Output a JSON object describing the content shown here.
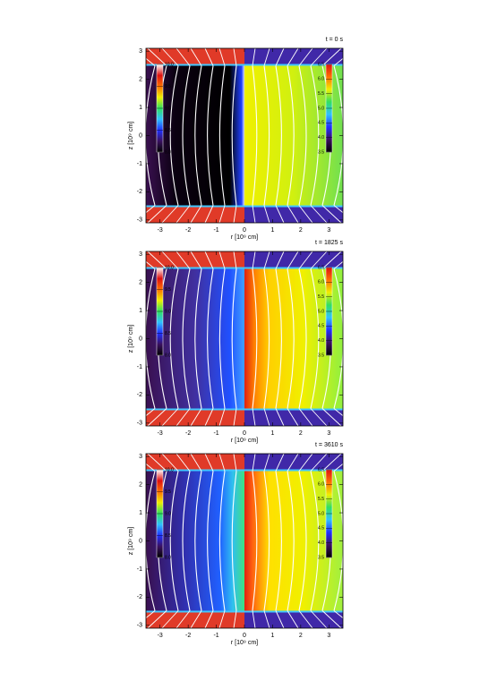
{
  "chart_data": [
    {
      "type": "field",
      "title": "t = 0 s",
      "xlabel": "r [10⁹ cm]",
      "ylabel": "z [10⁹ cm]",
      "xlim": [
        -3.5,
        3.5
      ],
      "xticks": [
        -3,
        -2,
        -1,
        0,
        1,
        2,
        3
      ],
      "ylim": [
        -3.1,
        3.1
      ],
      "yticks": [
        -3,
        -2,
        -1,
        0,
        1,
        2,
        3
      ],
      "colorbars": [
        {
          "side": "left",
          "lim": [
            8,
            10
          ],
          "ticks": [
            {
              "value": 8,
              "label": "8.0"
            },
            8.5,
            {
              "value": 9,
              "label": "9.0"
            },
            9.5,
            {
              "value": 10,
              "label": "10.0"
            }
          ],
          "colors": [
            "#000000",
            "#3a1060",
            "#2030ff",
            "#30c0ff",
            "#30e060",
            "#f0f000",
            "#ff7000",
            "#e01010",
            "#ffffff"
          ]
        },
        {
          "side": "right",
          "lim": [
            3.5,
            6.5
          ],
          "ticks": [
            3.5,
            {
              "value": 4,
              "label": "4.0"
            },
            4.5,
            {
              "value": 5,
              "label": "5.0"
            },
            5.5,
            {
              "value": 6,
              "label": "6.0"
            },
            6.5
          ],
          "colors": [
            "#000000",
            "#3a1060",
            "#2030ff",
            "#30c0ff",
            "#30e060",
            "#f0f000",
            "#ff7000",
            "#e01010"
          ]
        }
      ]
    },
    {
      "type": "field",
      "title": "t = 1825 s",
      "xlabel": "r [10⁹ cm]",
      "ylabel": "z [10⁹ cm]",
      "xlim": [
        -3.5,
        3.5
      ],
      "xticks": [
        -3,
        -2,
        -1,
        0,
        1,
        2,
        3
      ],
      "ylim": [
        -3.1,
        3.1
      ],
      "yticks": [
        -3,
        -2,
        -1,
        0,
        1,
        2,
        3
      ],
      "colorbars": [
        {
          "side": "left",
          "lim": [
            8,
            10
          ],
          "ticks": [
            {
              "value": 8,
              "label": "8.0"
            },
            8.5,
            {
              "value": 9,
              "label": "9.0"
            },
            9.5,
            {
              "value": 10,
              "label": "10.0"
            }
          ],
          "colors": [
            "#000000",
            "#3a1060",
            "#2030ff",
            "#30c0ff",
            "#30e060",
            "#f0f000",
            "#ff7000",
            "#e01010",
            "#ffffff"
          ]
        },
        {
          "side": "right",
          "lim": [
            3.5,
            6.5
          ],
          "ticks": [
            3.5,
            {
              "value": 4,
              "label": "4.0"
            },
            4.5,
            {
              "value": 5,
              "label": "5.0"
            },
            5.5,
            {
              "value": 6,
              "label": "6.0"
            },
            6.5
          ],
          "colors": [
            "#000000",
            "#3a1060",
            "#2030ff",
            "#30c0ff",
            "#30e060",
            "#f0f000",
            "#ff7000",
            "#e01010"
          ]
        }
      ]
    },
    {
      "type": "field",
      "title": "t = 3610 s",
      "xlabel": "r [10⁹ cm]",
      "ylabel": "z [10⁹ cm]",
      "xlim": [
        -3.5,
        3.5
      ],
      "xticks": [
        -3,
        -2,
        -1,
        0,
        1,
        2,
        3
      ],
      "ylim": [
        -3.1,
        3.1
      ],
      "yticks": [
        -3,
        -2,
        -1,
        0,
        1,
        2,
        3
      ],
      "colorbars": [
        {
          "side": "left",
          "lim": [
            8,
            10
          ],
          "ticks": [
            {
              "value": 8,
              "label": "8.0"
            },
            8.5,
            {
              "value": 9,
              "label": "9.0"
            },
            9.5,
            {
              "value": 10,
              "label": "10.0"
            }
          ],
          "colors": [
            "#000000",
            "#3a1060",
            "#2030ff",
            "#30c0ff",
            "#30e060",
            "#f0f000",
            "#ff7000",
            "#e01010",
            "#ffffff"
          ]
        },
        {
          "side": "right",
          "lim": [
            3.5,
            6.5
          ],
          "ticks": [
            3.5,
            {
              "value": 4,
              "label": "4.0"
            },
            4.5,
            {
              "value": 5,
              "label": "5.0"
            },
            5.5,
            {
              "value": 6,
              "label": "6.0"
            },
            6.5
          ],
          "colors": [
            "#000000",
            "#3a1060",
            "#2030ff",
            "#30c0ff",
            "#30e060",
            "#f0f000",
            "#ff7000",
            "#e01010"
          ]
        }
      ]
    }
  ]
}
